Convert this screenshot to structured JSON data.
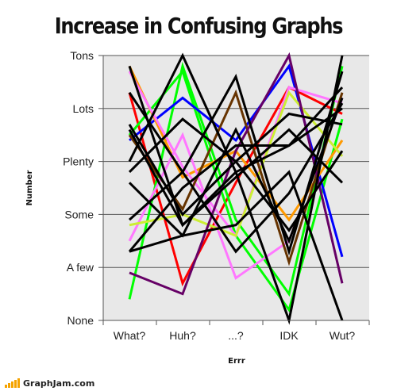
{
  "chart_data": {
    "type": "line",
    "title": "Increase in Confusing Graphs",
    "xlabel": "Errr",
    "ylabel": "Number",
    "categories": [
      "What?",
      "Huh?",
      "...?",
      "IDK",
      "Wut?"
    ],
    "y_tick_labels": [
      "None",
      "A few",
      "Some",
      "Plenty",
      "Lots",
      "Tons"
    ],
    "ylim": [
      0,
      5
    ],
    "grid": true,
    "series": [
      {
        "color": "#000000",
        "values": [
          4.3,
          2.8,
          1.3,
          2.4,
          4.1
        ]
      },
      {
        "color": "#000000",
        "values": [
          4.8,
          1.8,
          2.8,
          3.3,
          4.4
        ]
      },
      {
        "color": "#000000",
        "values": [
          3.0,
          5.0,
          2.8,
          0.0,
          5.0
        ]
      },
      {
        "color": "#000000",
        "values": [
          1.9,
          2.8,
          4.6,
          1.3,
          4.7
        ]
      },
      {
        "color": "#000000",
        "values": [
          2.6,
          1.6,
          3.6,
          1.5,
          4.2
        ]
      },
      {
        "color": "#000000",
        "values": [
          3.6,
          1.8,
          2.7,
          3.6,
          2.6
        ]
      },
      {
        "color": "#000000",
        "values": [
          1.3,
          2.5,
          3.3,
          3.3,
          4.0
        ]
      },
      {
        "color": "#000000",
        "values": [
          1.3,
          1.6,
          1.8,
          2.8,
          0.0
        ]
      },
      {
        "color": "#000000",
        "values": [
          2.8,
          3.8,
          3.0,
          3.9,
          3.7
        ]
      },
      {
        "color": "#000000",
        "values": [
          3.7,
          2.0,
          3.0,
          1.7,
          3.2
        ]
      },
      {
        "color": "#ff0000",
        "values": [
          4.3,
          0.7,
          2.6,
          4.4,
          3.9
        ]
      },
      {
        "color": "#00ff00",
        "values": [
          0.4,
          4.8,
          1.9,
          0.5,
          4.8
        ]
      },
      {
        "color": "#00ff00",
        "values": [
          3.5,
          4.7,
          1.6,
          0.2,
          3.8
        ]
      },
      {
        "color": "#0000ff",
        "values": [
          3.4,
          4.2,
          3.4,
          4.8,
          1.2
        ]
      },
      {
        "color": "#ff9900",
        "values": [
          4.8,
          2.7,
          3.2,
          1.9,
          3.4
        ]
      },
      {
        "color": "#ff77ff",
        "values": [
          1.5,
          3.5,
          0.8,
          1.5,
          4.2
        ]
      },
      {
        "color": "#ff77ff",
        "values": [
          4.7,
          2.9,
          1.6,
          4.4,
          4.1
        ]
      },
      {
        "color": "#ccee33",
        "values": [
          1.8,
          2.0,
          1.6,
          4.3,
          3.1
        ]
      },
      {
        "color": "#663300",
        "values": [
          3.5,
          2.1,
          4.3,
          1.1,
          4.3
        ]
      },
      {
        "color": "#660066",
        "values": [
          0.9,
          0.5,
          3.2,
          5.0,
          0.7
        ]
      }
    ]
  },
  "footer": {
    "site": "GraphJam.com"
  }
}
